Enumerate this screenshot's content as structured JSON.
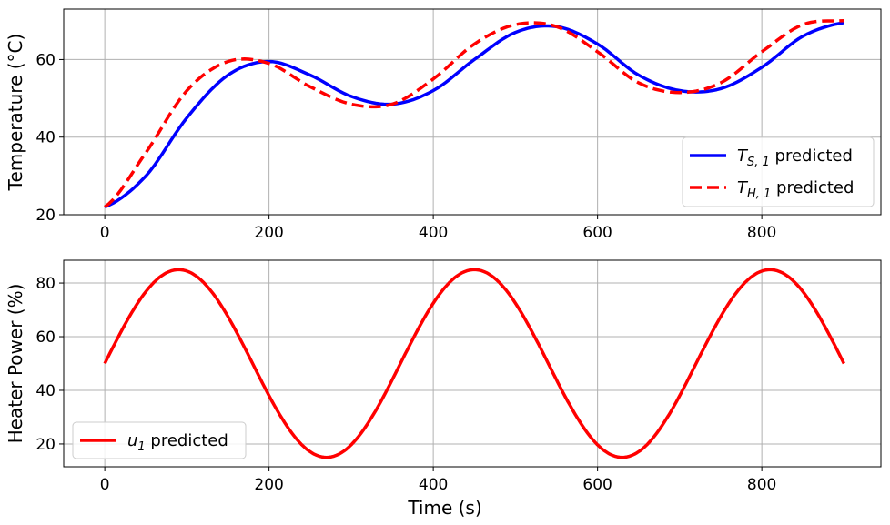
{
  "chart_data": [
    {
      "type": "line",
      "ylabel": "Temperature (°C)",
      "xlabel": "",
      "xlim": [
        -50,
        945
      ],
      "ylim": [
        20,
        73
      ],
      "xticks": [
        0,
        200,
        400,
        600,
        800
      ],
      "yticks": [
        20,
        40,
        60
      ],
      "grid": true,
      "legend_position": "lower-right",
      "series": [
        {
          "name": "T_S,1 predicted",
          "legend_main": "T",
          "legend_sub": "S, 1",
          "legend_rest": " predicted",
          "color": "#0000ff",
          "style": "solid",
          "x": [
            0,
            50,
            100,
            150,
            200,
            250,
            300,
            350,
            400,
            450,
            500,
            550,
            600,
            650,
            700,
            750,
            800,
            850,
            900
          ],
          "y": [
            22,
            30,
            45,
            56,
            59.5,
            56,
            50.5,
            48.5,
            52,
            60,
            67,
            68.5,
            64,
            56,
            52,
            52.5,
            58,
            66,
            69.5
          ]
        },
        {
          "name": "T_H,1 predicted",
          "legend_main": "T",
          "legend_sub": "H, 1",
          "legend_rest": " predicted",
          "color": "#ff0000",
          "style": "dashed",
          "x": [
            0,
            50,
            100,
            150,
            200,
            250,
            300,
            350,
            400,
            450,
            500,
            550,
            600,
            650,
            700,
            750,
            800,
            850,
            900
          ],
          "y": [
            22,
            36,
            52,
            59.5,
            59,
            53,
            48.5,
            48.5,
            55,
            64,
            69,
            68.5,
            62,
            54,
            51.5,
            54,
            62,
            69,
            70
          ]
        }
      ]
    },
    {
      "type": "line",
      "ylabel": "Heater Power (%)",
      "xlabel": "Time (s)",
      "xlim": [
        -50,
        945
      ],
      "ylim": [
        11.5,
        88.5
      ],
      "xticks": [
        0,
        200,
        400,
        600,
        800
      ],
      "yticks": [
        20,
        40,
        60,
        80
      ],
      "grid": true,
      "legend_position": "lower-left",
      "series": [
        {
          "name": "u_1 predicted",
          "legend_main": "u",
          "legend_sub": "1",
          "legend_rest": " predicted",
          "color": "#ff0000",
          "style": "solid",
          "function": "50 + 35 * sin(2*pi*t/360)",
          "x": [
            0,
            45,
            90,
            135,
            180,
            225,
            270,
            315,
            360,
            405,
            450,
            495,
            540,
            585,
            630,
            675,
            720,
            765,
            810,
            855,
            900
          ],
          "y": [
            50,
            74.7,
            85,
            74.7,
            50,
            25.3,
            15,
            25.3,
            50,
            74.7,
            85,
            74.7,
            50,
            25.3,
            15,
            25.3,
            50,
            74.7,
            85,
            74.7,
            50
          ]
        }
      ]
    }
  ]
}
